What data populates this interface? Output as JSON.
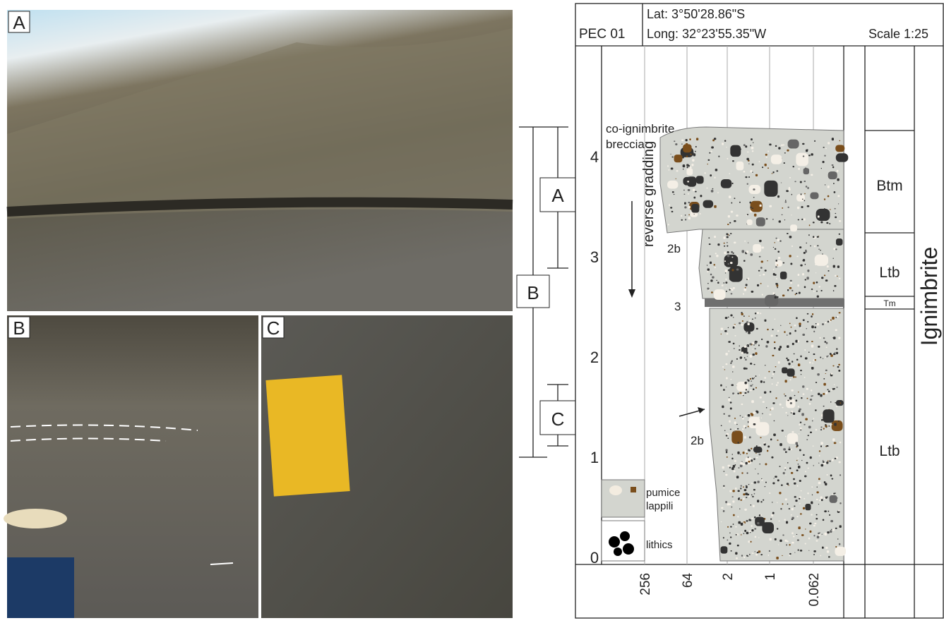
{
  "photos": {
    "labels": [
      "A",
      "B",
      "C"
    ]
  },
  "brackets": [
    "A",
    "B",
    "C"
  ],
  "log": {
    "header": {
      "id": "PEC 01",
      "lat": "Lat: 3°50'28.86\"S",
      "long": "Long: 32°23'55.35\"W",
      "scale": "Scale 1:25"
    },
    "depth_ticks": [
      0,
      1,
      2,
      3,
      4
    ],
    "grain_sizes": [
      256,
      64,
      2,
      1,
      0.062
    ],
    "annotations": {
      "breccia": [
        "co-ignimbrite",
        "breccia"
      ],
      "grading": "reverse gradding",
      "upper_2b": "2b",
      "bed_3": "3",
      "lower_2b": "2b"
    },
    "legend": {
      "pumice": [
        "pumice",
        "lappili"
      ],
      "lithics": "lithics"
    },
    "facies": [
      "Btm",
      "Ltb",
      "Tm",
      "Ltb"
    ],
    "unit": "Ignimbrite"
  }
}
